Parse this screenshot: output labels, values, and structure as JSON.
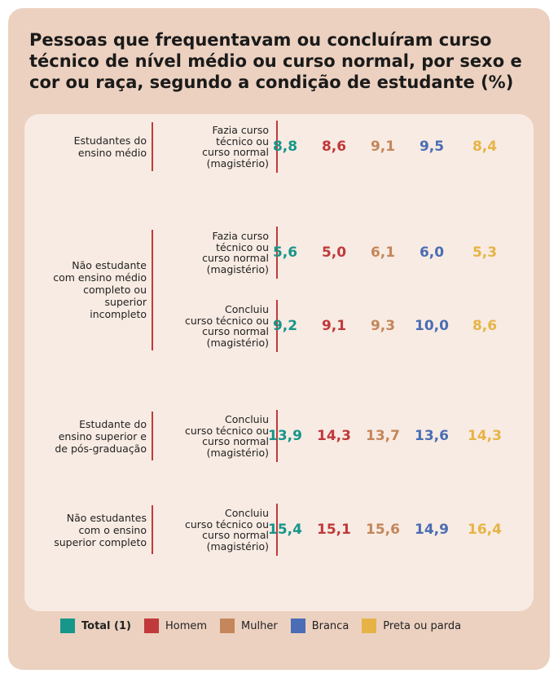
{
  "title": "Pessoas que frequentavam ou concluíram curso técnico de nível médio ou curso normal, por sexo e cor ou raça, segundo a condição de estudante (%)",
  "legend": [
    {
      "label": "Total (1)",
      "color": "#17968a"
    },
    {
      "label": "Homem",
      "color": "#c0393b"
    },
    {
      "label": "Mulher",
      "color": "#c4865a"
    },
    {
      "label": "Branca",
      "color": "#4a6db3"
    },
    {
      "label": "Preta ou parda",
      "color": "#e6b446"
    }
  ],
  "groups": [
    {
      "label": "Estudantes do\nensino médio",
      "rows": [
        {
          "description": "Fazia curso\ntécnico ou\ncurso normal\n(magistério)",
          "values": [
            "8,8",
            "8,6",
            "9,1",
            "9,5",
            "8,4"
          ]
        }
      ]
    },
    {
      "label": "Não estudante\ncom ensino médio\ncompleto ou\nsuperior\nincompleto",
      "rows": [
        {
          "description": "Fazia curso\ntécnico ou\ncurso normal\n(magistério)",
          "values": [
            "5,6",
            "5,0",
            "6,1",
            "6,0",
            "5,3"
          ]
        },
        {
          "description": "Concluiu\ncurso técnico ou\ncurso normal\n(magistério)",
          "values": [
            "9,2",
            "9,1",
            "9,3",
            "10,0",
            "8,6"
          ]
        }
      ]
    },
    {
      "label": "Estudante do\nensino superior e\nde pós-graduação",
      "rows": [
        {
          "description": "Concluiu\ncurso técnico ou\ncurso normal\n(magistério)",
          "values": [
            "13,9",
            "14,3",
            "13,7",
            "13,6",
            "14,3"
          ]
        }
      ]
    },
    {
      "label": "Não estudantes\ncom o ensino\nsuperior completo",
      "rows": [
        {
          "description": "Concluiu\ncurso técnico ou\ncurso normal\n(magistério)",
          "values": [
            "15,4",
            "15,1",
            "15,6",
            "14,9",
            "16,4"
          ]
        }
      ]
    }
  ]
}
